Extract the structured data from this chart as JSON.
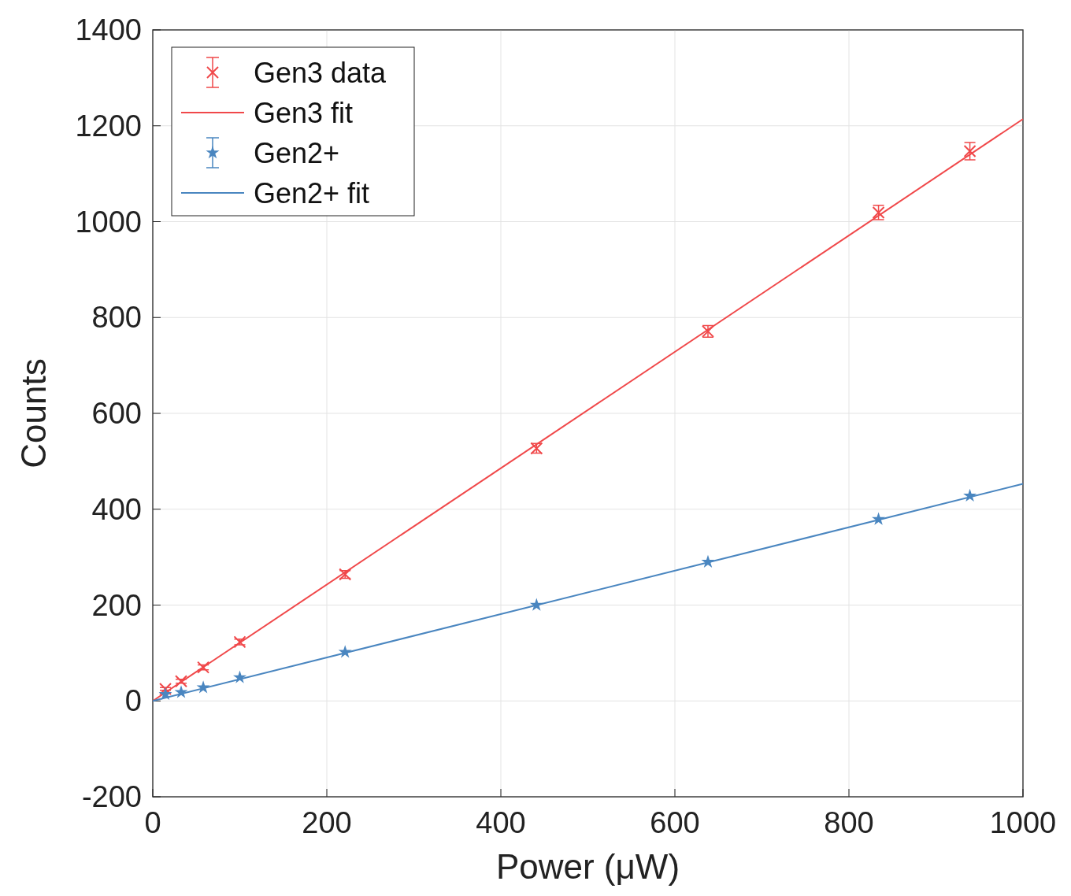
{
  "chart_data": {
    "type": "scatter",
    "xlabel": "Power (μW)",
    "ylabel": "Counts",
    "xlim": [
      0,
      1000
    ],
    "ylim": [
      -200,
      1400
    ],
    "xticks": [
      0,
      200,
      400,
      600,
      800,
      1000
    ],
    "yticks": [
      -200,
      0,
      200,
      400,
      600,
      800,
      1000,
      1200,
      1400
    ],
    "grid": true,
    "legend": "top left",
    "series": [
      {
        "name": "Gen3 data",
        "marker": "cross",
        "color": "#f0484a",
        "x": [
          14.5,
          32.6,
          58,
          100,
          221,
          441,
          638,
          834,
          939
        ],
        "values": [
          25,
          41,
          70,
          123,
          264,
          527,
          771,
          1019,
          1147
        ],
        "errors": [
          3,
          4,
          5,
          6,
          8,
          10,
          12,
          15,
          18
        ]
      },
      {
        "name": "Gen3 fit",
        "type": "line",
        "color": "#f0484a",
        "x": [
          0,
          1000
        ],
        "values": [
          0,
          1214
        ]
      },
      {
        "name": "Gen2+",
        "marker": "star",
        "color": "#4a86c0",
        "x": [
          14.5,
          32.6,
          58,
          100,
          221,
          441,
          638,
          834,
          939
        ],
        "values": [
          14,
          18,
          28,
          49,
          102,
          200,
          290,
          379,
          428
        ]
      },
      {
        "name": "Gen2+ fit",
        "type": "line",
        "color": "#4a86c0",
        "x": [
          0,
          1000
        ],
        "values": [
          0,
          453
        ]
      }
    ]
  }
}
